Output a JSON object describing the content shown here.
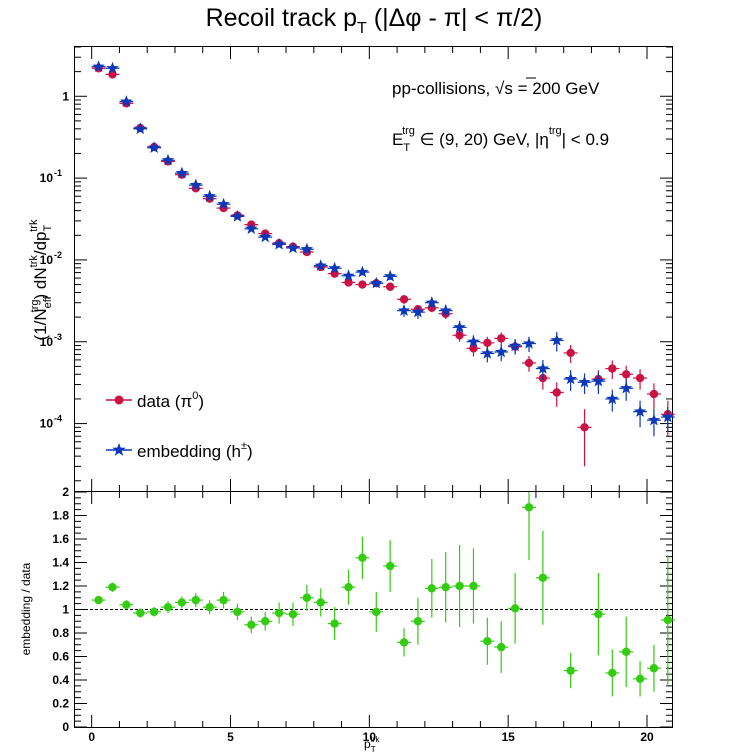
{
  "chart_data": [
    {
      "type": "scatter",
      "title": "Recoil track p_T (|Δφ - π| < π/2)",
      "title_parts": {
        "main": "Recoil track p",
        "sub": "T",
        "rest": " (|Δφ - π| < π/2)"
      },
      "ylabel_parts": {
        "a": "(1/N",
        "b": "eff",
        "c": "trg",
        "d": ") dN",
        "e": "trk",
        "f": "/dp",
        "g": "T",
        "h": "trk"
      },
      "yscale": "log",
      "ylim": [
        1.5e-05,
        4
      ],
      "xlim": [
        -0.6,
        20.9
      ],
      "xticks": [
        0,
        5,
        10,
        15,
        20
      ],
      "yticks": [
        {
          "m": "1",
          "v": 1
        },
        {
          "m": "10",
          "e": "-1",
          "v": 0.1
        },
        {
          "m": "10",
          "e": "-2",
          "v": 0.01
        },
        {
          "m": "10",
          "e": "-3",
          "v": 0.001
        },
        {
          "m": "10",
          "e": "-4",
          "v": 0.0001
        }
      ],
      "annotations": {
        "line1_a": "pp-collisions, ",
        "line1_b": "s = 200 GeV",
        "line2_a": "E",
        "line2_b": "T",
        "line2_c": "trg",
        "line2_d": " ∈ (9, 20) GeV, |η",
        "line2_e": "trg",
        "line2_f": "| < 0.9"
      },
      "legend_placement": "bottom-left",
      "series": [
        {
          "name": "data (π0)",
          "label": "data (π",
          "label_sup": "0",
          "label_end": ")",
          "color": "#cc1144",
          "marker": "circle",
          "x": [
            0.25,
            0.75,
            1.25,
            1.75,
            2.25,
            2.75,
            3.25,
            3.75,
            4.25,
            4.75,
            5.25,
            5.75,
            6.25,
            6.75,
            7.25,
            7.75,
            8.25,
            8.75,
            9.25,
            9.75,
            10.25,
            10.75,
            11.25,
            11.75,
            12.25,
            12.75,
            13.25,
            13.75,
            14.25,
            14.75,
            15.25,
            15.75,
            16.25,
            16.75,
            17.25,
            17.75,
            18.25,
            18.75,
            19.25,
            19.75,
            20.25,
            20.75
          ],
          "y": [
            2.2,
            1.85,
            0.82,
            0.41,
            0.24,
            0.16,
            0.11,
            0.075,
            0.056,
            0.043,
            0.035,
            0.027,
            0.021,
            0.016,
            0.0145,
            0.0125,
            0.0082,
            0.0068,
            0.0053,
            0.005,
            0.0052,
            0.0047,
            0.0033,
            0.0025,
            0.0026,
            0.0022,
            0.0012,
            0.00083,
            0.00097,
            0.0011,
            0.00087,
            0.00055,
            0.00036,
            0.00024,
            0.00073,
            9e-05,
            0.00035,
            0.00047,
            0.0004,
            0.00036,
            0.00023,
            0.00013
          ],
          "yerr": [
            0.06,
            0.05,
            0.025,
            0.012,
            0.008,
            0.005,
            0.004,
            0.003,
            0.0025,
            0.002,
            0.0017,
            0.0014,
            0.0012,
            0.001,
            0.0009,
            0.0008,
            0.0006,
            0.0005,
            0.0005,
            0.00045,
            0.0005,
            0.00045,
            0.0004,
            0.0003,
            0.0003,
            0.0003,
            0.0002,
            0.00017,
            0.00018,
            0.0002,
            0.00017,
            0.00012,
            0.0001,
            8e-05,
            0.00018,
            6e-05,
            0.0001,
            0.00012,
            0.00011,
            0.0001,
            8e-05,
            6e-05
          ]
        },
        {
          "name": "embedding (h±)",
          "label": "embedding (h",
          "label_sup": "±",
          "label_end": ")",
          "color": "#0a38b8",
          "marker": "star",
          "x": [
            0.25,
            0.75,
            1.25,
            1.75,
            2.25,
            2.75,
            3.25,
            3.75,
            4.25,
            4.75,
            5.25,
            5.75,
            6.25,
            6.75,
            7.25,
            7.75,
            8.25,
            8.75,
            9.25,
            9.75,
            10.25,
            10.75,
            11.25,
            11.75,
            12.25,
            12.75,
            13.25,
            13.75,
            14.25,
            14.75,
            15.25,
            15.75,
            16.25,
            16.75,
            17.25,
            17.75,
            18.25,
            18.75,
            19.25,
            19.75,
            20.25,
            20.75
          ],
          "y": [
            2.3,
            2.2,
            0.86,
            0.4,
            0.235,
            0.165,
            0.115,
            0.082,
            0.06,
            0.048,
            0.034,
            0.024,
            0.019,
            0.0155,
            0.014,
            0.0135,
            0.0085,
            0.0079,
            0.0064,
            0.0071,
            0.0052,
            0.0063,
            0.0024,
            0.0023,
            0.003,
            0.0024,
            0.0015,
            0.001,
            0.00072,
            0.00075,
            0.00089,
            0.00095,
            0.00047,
            0.00104,
            0.00035,
            0.00032,
            0.00033,
            0.0002,
            0.00027,
            0.00014,
            0.00011,
            0.00012
          ],
          "yerr": [
            0.06,
            0.06,
            0.025,
            0.012,
            0.008,
            0.005,
            0.004,
            0.003,
            0.0025,
            0.002,
            0.0017,
            0.0014,
            0.0012,
            0.001,
            0.0009,
            0.0009,
            0.0007,
            0.0006,
            0.0006,
            0.0006,
            0.0005,
            0.0006,
            0.0004,
            0.0004,
            0.0005,
            0.0004,
            0.0003,
            0.0002,
            0.00016,
            0.00017,
            0.00019,
            0.0002,
            0.00013,
            0.00028,
            0.0001,
            9e-05,
            0.0001,
            6e-05,
            8e-05,
            5e-05,
            4e-05,
            4e-05
          ]
        }
      ]
    },
    {
      "type": "scatter",
      "ylabel": "embedding / data",
      "xlabel_parts": {
        "a": "p",
        "b": "T",
        "c": "trk"
      },
      "xlim": [
        -0.6,
        20.9
      ],
      "ylim": [
        0,
        2
      ],
      "xticks": [
        0,
        5,
        10,
        15,
        20
      ],
      "yticks": [
        "0",
        "0.2",
        "0.4",
        "0.6",
        "0.8",
        "1",
        "1.2",
        "1.4",
        "1.6",
        "1.8",
        "2"
      ],
      "reference_line": 1,
      "series": [
        {
          "color": "#33cc11",
          "marker": "circle",
          "x": [
            0.25,
            0.75,
            1.25,
            1.75,
            2.25,
            2.75,
            3.25,
            3.75,
            4.25,
            4.75,
            5.25,
            5.75,
            6.25,
            6.75,
            7.25,
            7.75,
            8.25,
            8.75,
            9.25,
            9.75,
            10.25,
            10.75,
            11.25,
            11.75,
            12.25,
            12.75,
            13.25,
            13.75,
            14.25,
            14.75,
            15.25,
            15.75,
            16.25,
            17.25,
            18.25,
            18.75,
            19.25,
            19.75,
            20.25,
            20.75
          ],
          "y": [
            1.08,
            1.19,
            1.04,
            0.97,
            0.98,
            1.02,
            1.06,
            1.08,
            1.02,
            1.08,
            0.98,
            0.87,
            0.9,
            0.97,
            0.96,
            1.1,
            1.06,
            0.88,
            1.19,
            1.44,
            0.98,
            1.37,
            0.72,
            0.9,
            1.18,
            1.19,
            1.2,
            1.2,
            0.73,
            0.68,
            1.01,
            1.87,
            1.27,
            0.48,
            0.96,
            0.46,
            0.64,
            0.41,
            0.5,
            0.91
          ],
          "yerr": [
            0.03,
            0.04,
            0.04,
            0.04,
            0.04,
            0.05,
            0.05,
            0.06,
            0.06,
            0.07,
            0.07,
            0.07,
            0.08,
            0.09,
            0.1,
            0.11,
            0.12,
            0.14,
            0.15,
            0.18,
            0.17,
            0.22,
            0.12,
            0.2,
            0.25,
            0.3,
            0.35,
            0.32,
            0.2,
            0.22,
            0.3,
            0.45,
            0.4,
            0.15,
            0.35,
            0.2,
            0.3,
            0.15,
            0.2,
            0.55
          ]
        }
      ]
    }
  ]
}
